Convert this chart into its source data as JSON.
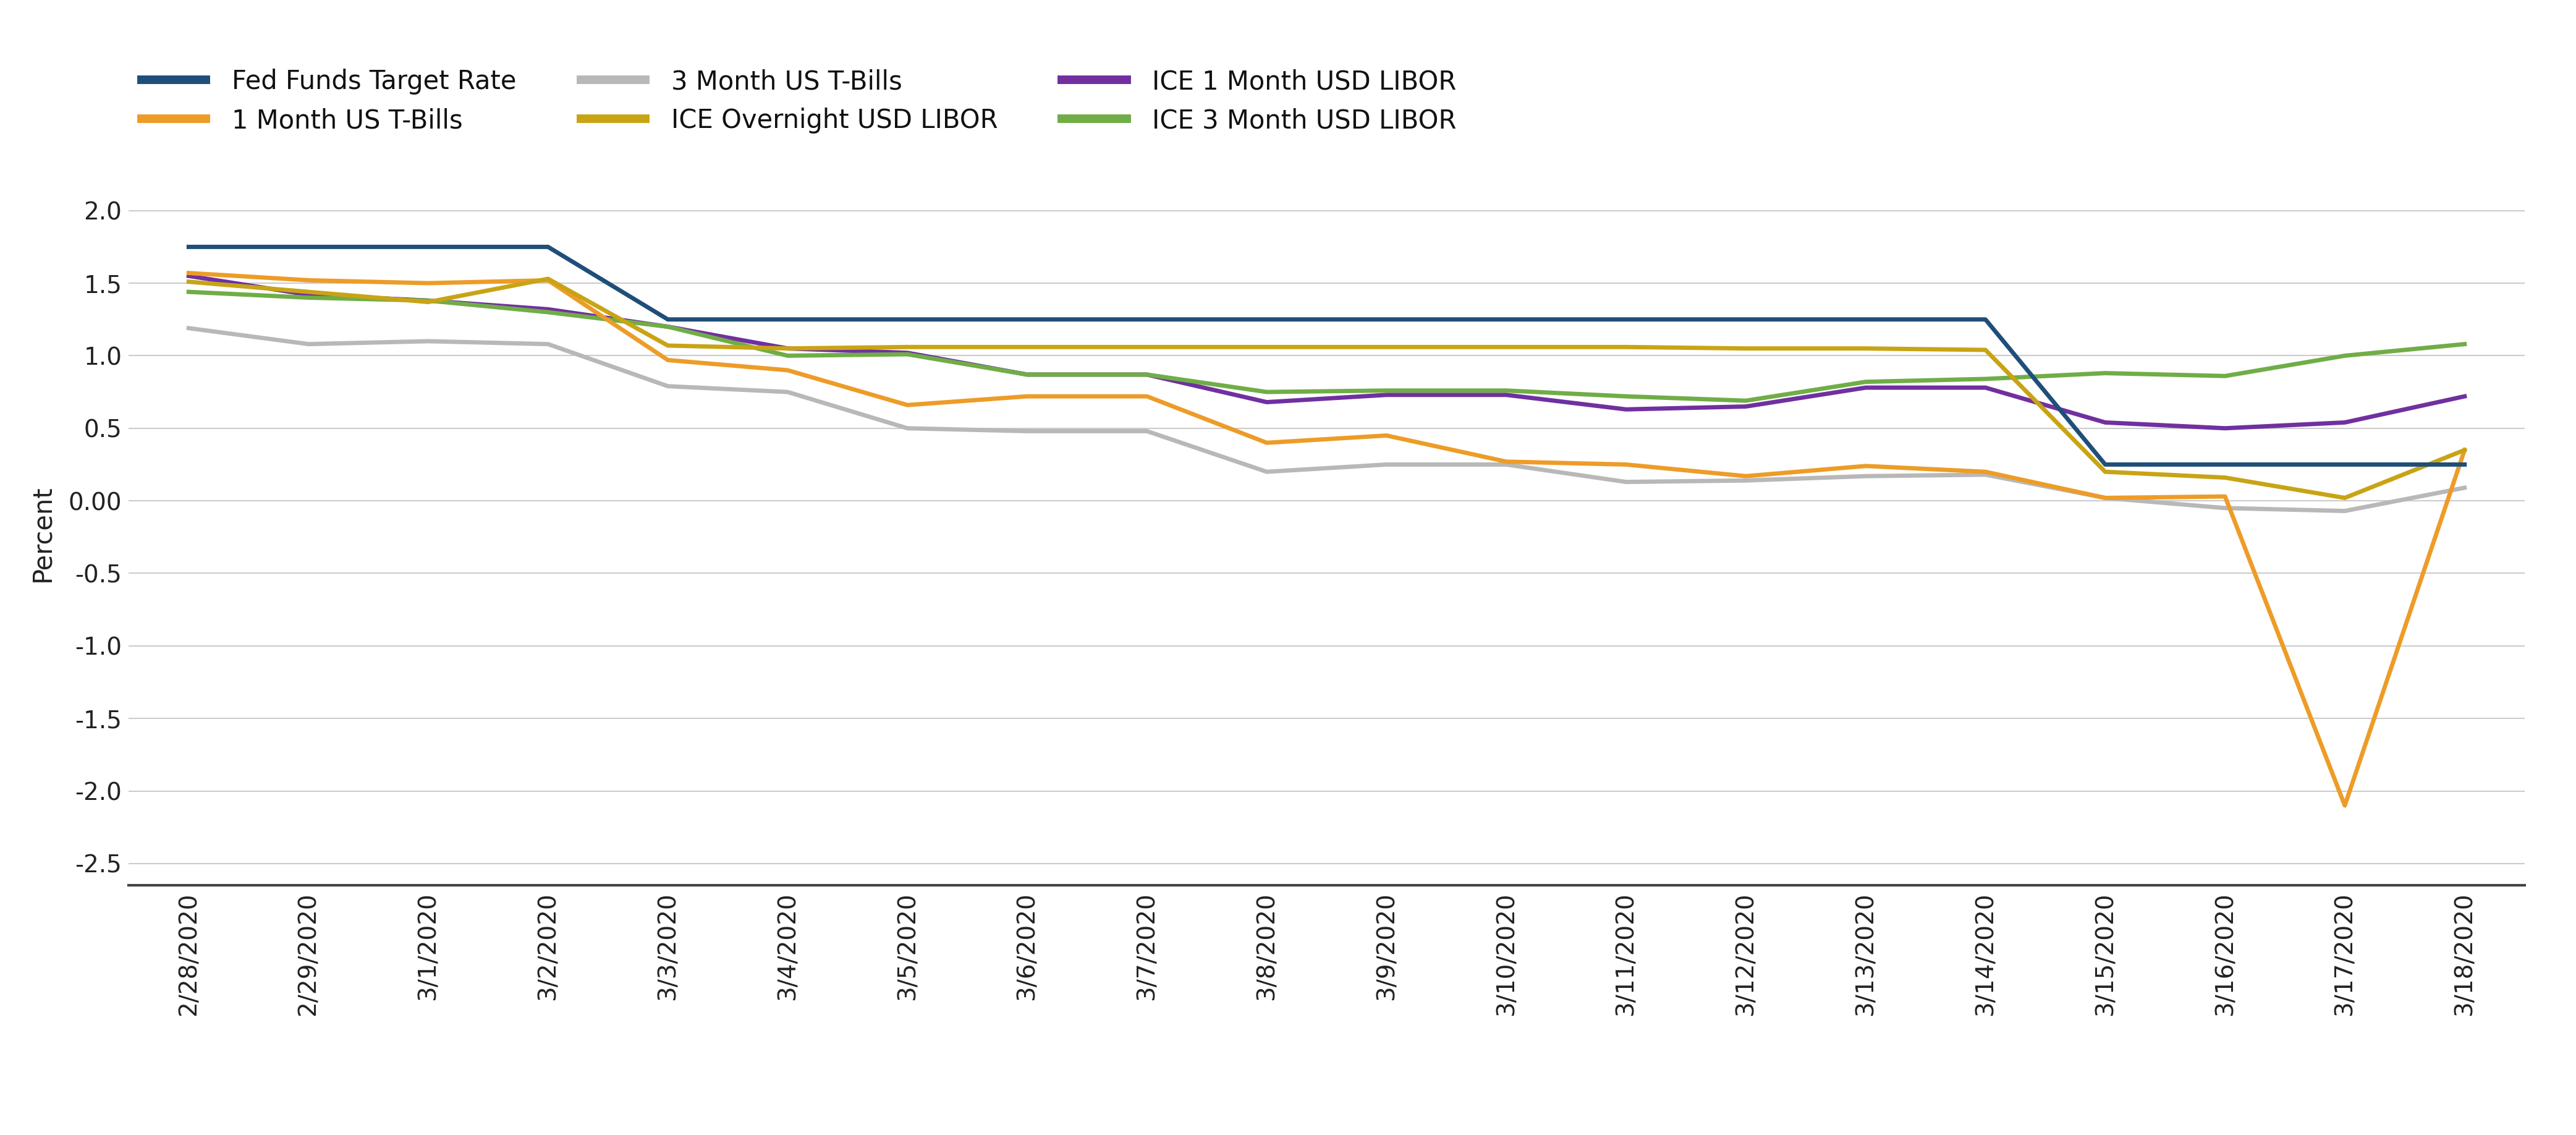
{
  "dates": [
    "2/28/2020",
    "2/29/2020",
    "3/1/2020",
    "3/2/2020",
    "3/3/2020",
    "3/4/2020",
    "3/5/2020",
    "3/6/2020",
    "3/7/2020",
    "3/8/2020",
    "3/9/2020",
    "3/10/2020",
    "3/11/2020",
    "3/12/2020",
    "3/13/2020",
    "3/14/2020",
    "3/15/2020",
    "3/16/2020",
    "3/17/2020",
    "3/18/2020"
  ],
  "fed_funds": [
    1.75,
    1.75,
    1.75,
    1.75,
    1.25,
    1.25,
    1.25,
    1.25,
    1.25,
    1.25,
    1.25,
    1.25,
    1.25,
    1.25,
    1.25,
    1.25,
    0.25,
    0.25,
    0.25,
    0.25
  ],
  "one_month_tbills": [
    1.57,
    1.52,
    1.5,
    1.52,
    0.97,
    0.9,
    0.66,
    0.72,
    0.72,
    0.4,
    0.45,
    0.27,
    0.25,
    0.17,
    0.24,
    0.2,
    0.02,
    0.03,
    -2.1,
    0.35
  ],
  "three_month_tbills": [
    1.19,
    1.08,
    1.1,
    1.08,
    0.79,
    0.75,
    0.5,
    0.48,
    0.48,
    0.2,
    0.25,
    0.25,
    0.13,
    0.14,
    0.17,
    0.18,
    0.02,
    -0.05,
    -0.07,
    0.09
  ],
  "ice_overnight_libor": [
    1.51,
    1.44,
    1.37,
    1.53,
    1.07,
    1.05,
    1.06,
    1.06,
    1.06,
    1.06,
    1.06,
    1.06,
    1.06,
    1.05,
    1.05,
    1.04,
    0.2,
    0.16,
    0.02,
    0.35
  ],
  "ice_1month_libor": [
    1.55,
    1.42,
    1.38,
    1.32,
    1.2,
    1.05,
    1.02,
    0.87,
    0.87,
    0.68,
    0.73,
    0.73,
    0.63,
    0.65,
    0.78,
    0.78,
    0.54,
    0.5,
    0.54,
    0.72
  ],
  "ice_3month_libor": [
    1.44,
    1.4,
    1.38,
    1.3,
    1.2,
    1.0,
    1.01,
    0.87,
    0.87,
    0.75,
    0.76,
    0.76,
    0.72,
    0.69,
    0.82,
    0.84,
    0.88,
    0.86,
    1.0,
    1.08
  ],
  "colors": {
    "fed_funds": "#1f4e79",
    "one_month_tbills": "#ed9c28",
    "three_month_tbills": "#b8b8b8",
    "ice_overnight_libor": "#c8a415",
    "ice_1month_libor": "#7030a0",
    "ice_3month_libor": "#70ad47"
  },
  "legend_labels": {
    "fed_funds": "Fed Funds Target Rate",
    "one_month_tbills": "1 Month US T-Bills",
    "three_month_tbills": "3 Month US T-Bills",
    "ice_overnight_libor": "ICE Overnight USD LIBOR",
    "ice_1month_libor": "ICE 1 Month USD LIBOR",
    "ice_3month_libor": "ICE 3 Month USD LIBOR"
  },
  "ylabel": "Percent",
  "ylim": [
    -2.65,
    2.2
  ],
  "yticks": [
    2.0,
    1.5,
    1.0,
    0.5,
    0.0,
    -0.5,
    -1.0,
    -1.5,
    -2.0,
    -2.5
  ],
  "line_width": 5.0,
  "background_color": "#ffffff",
  "tick_fontsize": 28,
  "ylabel_fontsize": 30,
  "legend_fontsize": 30
}
